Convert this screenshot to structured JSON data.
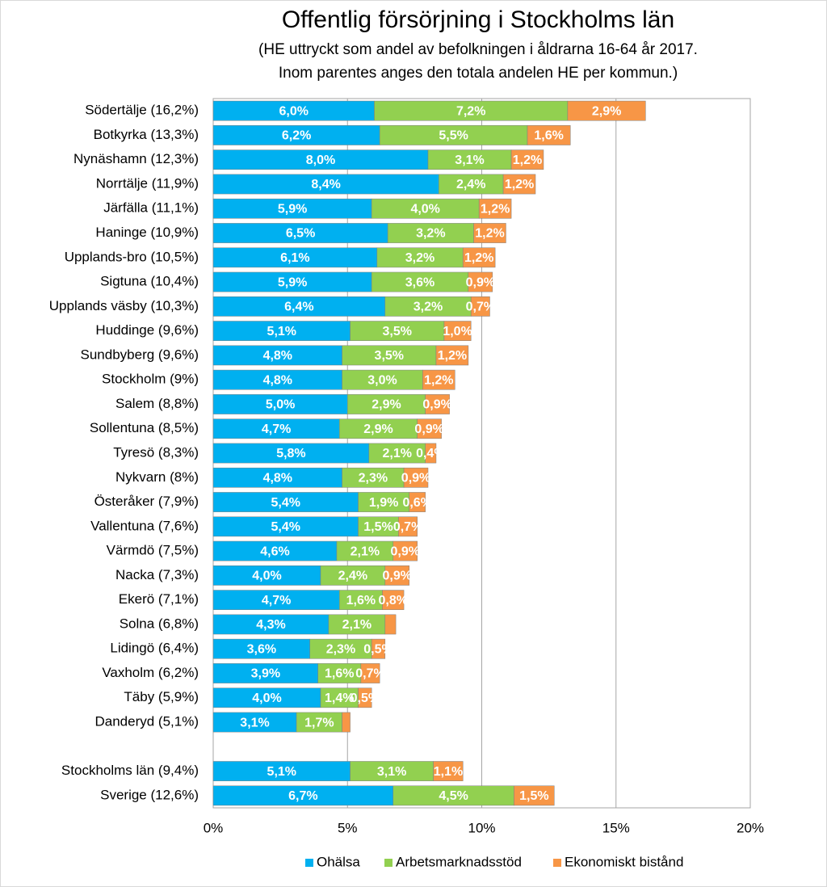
{
  "chart_data": {
    "type": "stacked-barh",
    "title": "Offentlig försörjning i Stockholms län",
    "subtitle": [
      "(HE uttryckt som andel av befolkningen i åldrarna 16-64 år 2017.",
      "Inom parentes anges den totala andelen HE per kommun.)"
    ],
    "categories": [
      "Södertälje (16,2%)",
      "Botkyrka (13,3%)",
      "Nynäshamn (12,3%)",
      "Norrtälje (11,9%)",
      "Järfälla (11,1%)",
      "Haninge (10,9%)",
      "Upplands-bro (10,5%)",
      "Sigtuna (10,4%)",
      "Upplands väsby (10,3%)",
      "Huddinge (9,6%)",
      "Sundbyberg (9,6%)",
      "Stockholm (9%)",
      "Salem (8,8%)",
      "Sollentuna (8,5%)",
      "Tyresö (8,3%)",
      "Nykvarn (8%)",
      "Österåker (7,9%)",
      "Vallentuna (7,6%)",
      "Värmdö (7,5%)",
      "Nacka (7,3%)",
      "Ekerö (7,1%)",
      "Solna (6,8%)",
      "Lidingö (6,4%)",
      "Vaxholm (6,2%)",
      "Täby (5,9%)",
      "Danderyd (5,1%)",
      null,
      "Stockholms län (9,4%)",
      "Sverige (12,6%)"
    ],
    "series": [
      {
        "name": "Ohälsa",
        "color": "#00b0f0",
        "values": [
          6.0,
          6.2,
          8.0,
          8.4,
          5.9,
          6.5,
          6.1,
          5.9,
          6.4,
          5.1,
          4.8,
          4.8,
          5.0,
          4.7,
          5.8,
          4.8,
          5.4,
          5.4,
          4.6,
          4.0,
          4.7,
          4.3,
          3.6,
          3.9,
          4.0,
          3.1,
          null,
          5.1,
          6.7
        ],
        "value_labels": [
          "6,0%",
          "6,2%",
          "8,0%",
          "8,4%",
          "5,9%",
          "6,5%",
          "6,1%",
          "5,9%",
          "6,4%",
          "5,1%",
          "4,8%",
          "4,8%",
          "5,0%",
          "4,7%",
          "5,8%",
          "4,8%",
          "5,4%",
          "5,4%",
          "4,6%",
          "4,0%",
          "4,7%",
          "4,3%",
          "3,6%",
          "3,9%",
          "4,0%",
          "3,1%",
          null,
          "5,1%",
          "6,7%"
        ]
      },
      {
        "name": "Arbetsmarknadsstöd",
        "color": "#92d050",
        "values": [
          7.2,
          5.5,
          3.1,
          2.4,
          4.0,
          3.2,
          3.2,
          3.6,
          3.2,
          3.5,
          3.5,
          3.0,
          2.9,
          2.9,
          2.1,
          2.3,
          1.9,
          1.5,
          2.1,
          2.4,
          1.6,
          2.1,
          2.3,
          1.6,
          1.4,
          1.7,
          null,
          3.1,
          4.5
        ],
        "value_labels": [
          "7,2%",
          "5,5%",
          "3,1%",
          "2,4%",
          "4,0%",
          "3,2%",
          "3,2%",
          "3,6%",
          "3,2%",
          "3,5%",
          "3,5%",
          "3,0%",
          "2,9%",
          "2,9%",
          "2,1%",
          "2,3%",
          "1,9%",
          "1,5%",
          "2,1%",
          "2,4%",
          "1,6%",
          "2,1%",
          "2,3%",
          "1,6%",
          "1,4%",
          "1,7%",
          null,
          "3,1%",
          "4,5%"
        ]
      },
      {
        "name": "Ekonomiskt bistånd",
        "color": "#f79646",
        "values": [
          2.9,
          1.6,
          1.2,
          1.2,
          1.2,
          1.2,
          1.2,
          0.9,
          0.7,
          1.0,
          1.2,
          1.2,
          0.9,
          0.9,
          0.4,
          0.9,
          0.6,
          0.7,
          0.9,
          0.9,
          0.8,
          0.4,
          0.5,
          0.7,
          0.5,
          0.3,
          null,
          1.1,
          1.5
        ],
        "value_labels": [
          "2,9%",
          "1,6%",
          "1,2%",
          "1,2%",
          "1,2%",
          "1,2%",
          "1,2%",
          "0,9%",
          "0,7%",
          "1,0%",
          "1,2%",
          "1,2%",
          "0,9%",
          "0,9%",
          "0,4%",
          "0,9%",
          "0,6%",
          "0,7%",
          "0,9%",
          "0,9%",
          "0,8%",
          null,
          "0,5%",
          "0,7%",
          "0,5%",
          null,
          null,
          "1,1%",
          "1,5%"
        ]
      }
    ],
    "xlim": [
      0,
      20
    ],
    "xticks": [
      {
        "value": 0,
        "label": "0%"
      },
      {
        "value": 5,
        "label": "5%"
      },
      {
        "value": 10,
        "label": "10%"
      },
      {
        "value": 15,
        "label": "15%"
      },
      {
        "value": 20,
        "label": "20%"
      }
    ],
    "grid": true,
    "legend": "bottom"
  }
}
